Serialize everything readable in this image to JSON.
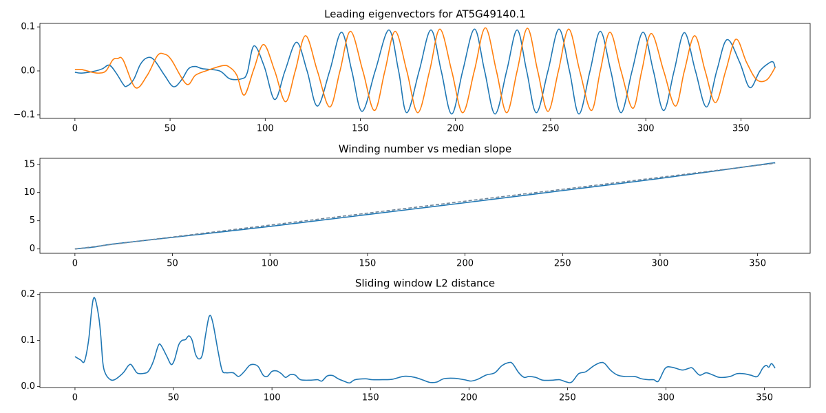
{
  "chart_data": [
    {
      "type": "line",
      "title": "Leading eigenvectors for AT5G49140.1",
      "xlim": [
        -18.4,
        386.4
      ],
      "xticks": [
        0,
        50,
        100,
        150,
        200,
        250,
        300,
        350
      ],
      "ylim": [
        -0.108,
        0.108
      ],
      "yticks": [
        {
          "value": -0.1,
          "label": "−0.1"
        },
        {
          "value": 0,
          "label": "0.0"
        },
        {
          "value": 0.1,
          "label": "0.1"
        }
      ],
      "series": [
        {
          "color": "#1f77b4",
          "x": [
            0,
            3.6,
            10.9,
            14.5,
            18.1,
            21.7,
            25.3,
            27.1,
            30.8,
            34.4,
            38.0,
            41.6,
            47.1,
            51.8,
            56.1,
            59.7,
            63.3,
            67.0,
            76.0,
            81.4,
            87.6,
            90.5,
            94.1,
            99.5,
            105.0,
            110.4,
            116.5,
            122.0,
            127.4,
            133.9,
            140.1,
            145.5,
            150.9,
            157.8,
            165.0,
            170.1,
            174.4,
            180.9,
            187.1,
            192.5,
            198.0,
            203.8,
            210.0,
            215.3,
            220.8,
            226.9,
            232.4,
            237.4,
            242.5,
            248.6,
            254.4,
            259.9,
            264.9,
            270.7,
            276.1,
            281.6,
            287.0,
            292.8,
            298.6,
            304.0,
            309.4,
            314.9,
            320.3,
            326.1,
            331.9,
            337.3,
            342.7,
            349.3,
            354.7,
            360.0,
            364.8,
            367.0,
            368.0
          ],
          "values": [
            -0.003,
            -0.005,
            0.0,
            0.005,
            0.013,
            -0.005,
            -0.03,
            -0.035,
            -0.02,
            0.015,
            0.03,
            0.025,
            -0.01,
            -0.036,
            -0.02,
            0.005,
            0.01,
            0.005,
            0.0,
            -0.018,
            -0.018,
            -0.005,
            0.057,
            0.01,
            -0.065,
            0.0,
            0.065,
            0.0,
            -0.08,
            0.0,
            0.088,
            0.0,
            -0.092,
            0.0,
            0.093,
            0.0,
            -0.095,
            0.0,
            0.093,
            0.0,
            -0.098,
            0.0,
            0.095,
            0.0,
            -0.098,
            0.0,
            0.093,
            0.0,
            -0.095,
            0.0,
            0.095,
            0.0,
            -0.098,
            0.0,
            0.09,
            0.0,
            -0.095,
            0.0,
            0.088,
            0.0,
            -0.09,
            0.0,
            0.087,
            0.0,
            -0.082,
            0.0,
            0.071,
            0.02,
            -0.038,
            0.0,
            0.018,
            0.02,
            0.007
          ]
        },
        {
          "color": "#ff7f0e",
          "x": [
            0,
            3.6,
            9.0,
            12.7,
            16.3,
            19.9,
            22.4,
            25.3,
            31.8,
            38.0,
            43.4,
            47.1,
            50.7,
            58.6,
            63.3,
            68.8,
            77.8,
            81.4,
            85.1,
            89.0,
            94.1,
            99.2,
            105.0,
            110.7,
            115.8,
            121.2,
            127.4,
            133.9,
            139.3,
            144.8,
            151.3,
            157.4,
            162.9,
            168.3,
            174.4,
            180.2,
            186.4,
            191.8,
            198.0,
            203.8,
            209.9,
            215.7,
            221.5,
            226.9,
            232.4,
            237.8,
            243.2,
            248.6,
            254.1,
            259.5,
            265.3,
            271.4,
            276.1,
            281.2,
            287.0,
            293.2,
            297.9,
            302.9,
            309.4,
            315.6,
            320.3,
            325.7,
            331.2,
            336.6,
            342.0,
            347.4,
            352.9,
            358.3,
            363.7,
            368.0
          ],
          "values": [
            0.003,
            0.003,
            -0.003,
            -0.005,
            0.0,
            0.025,
            0.028,
            0.025,
            -0.038,
            -0.01,
            0.035,
            0.038,
            0.025,
            -0.03,
            -0.01,
            0.0,
            0.012,
            0.008,
            -0.01,
            -0.055,
            0.005,
            0.06,
            0.0,
            -0.07,
            0.0,
            0.08,
            0.0,
            -0.082,
            0.0,
            0.09,
            0.0,
            -0.09,
            0.0,
            0.09,
            0.0,
            -0.095,
            0.0,
            0.095,
            0.0,
            -0.095,
            0.0,
            0.098,
            0.0,
            -0.095,
            0.0,
            0.097,
            0.0,
            -0.092,
            0.0,
            0.095,
            0.0,
            -0.09,
            0.0,
            0.088,
            0.0,
            -0.085,
            0.0,
            0.085,
            0.0,
            -0.08,
            0.0,
            0.08,
            0.0,
            -0.072,
            0.0,
            0.072,
            0.02,
            -0.02,
            -0.02,
            0.008
          ]
        }
      ]
    },
    {
      "type": "line",
      "title": "Winding number vs median slope",
      "xlim": [
        -17.95,
        376.95
      ],
      "xticks": [
        0,
        50,
        100,
        150,
        200,
        250,
        300,
        350
      ],
      "ylim": [
        -0.77,
        16.07
      ],
      "yticks": [
        0,
        5,
        10,
        15
      ],
      "series": [
        {
          "color": "#1f77b4",
          "x": [
            0,
            10,
            20,
            50,
            100,
            150,
            200,
            250,
            300,
            359
          ],
          "values": [
            0,
            0.35,
            0.9,
            2.05,
            4.0,
            6.1,
            8.2,
            10.35,
            12.5,
            15.3
          ]
        },
        {
          "color": "#6f8599",
          "linestyle": "dashed",
          "x": [
            0,
            10,
            20,
            50,
            100,
            150,
            200,
            250,
            300,
            359
          ],
          "values": [
            0,
            0.42,
            0.85,
            2.12,
            4.23,
            6.35,
            8.47,
            10.58,
            12.7,
            15.2
          ]
        }
      ]
    },
    {
      "type": "line",
      "title": "Sliding window L2 distance",
      "xlim": [
        -17.8,
        373.2
      ],
      "xticks": [
        0,
        50,
        100,
        150,
        200,
        250,
        300,
        350
      ],
      "ylim": [
        -0.002,
        0.204
      ],
      "yticks": [
        {
          "value": 0,
          "label": "0.0"
        },
        {
          "value": 0.1,
          "label": "0.1"
        },
        {
          "value": 0.2,
          "label": "0.2"
        }
      ],
      "series": [
        {
          "color": "#1f77b4",
          "x": [
            0,
            2.8,
            4.8,
            6.9,
            8.3,
            9.3,
            10.4,
            12.1,
            13.1,
            14.2,
            15.6,
            18.0,
            20.1,
            22.5,
            24.9,
            27.0,
            28.4,
            30.1,
            31.8,
            35.3,
            37.4,
            39.8,
            42.2,
            43.6,
            46.7,
            48.8,
            50.5,
            52.6,
            54.3,
            56.1,
            57.8,
            59.5,
            61.2,
            63.0,
            64.7,
            66.4,
            68.2,
            69.9,
            72.7,
            74.7,
            76.8,
            80.3,
            83.0,
            85.8,
            88.6,
            91.0,
            93.1,
            95.5,
            97.6,
            100.0,
            102.4,
            104.8,
            106.9,
            109.3,
            111.8,
            114.5,
            119.7,
            123.2,
            125.3,
            128.0,
            130.8,
            133.6,
            137.0,
            139.4,
            142.2,
            147.4,
            150.9,
            156.1,
            161.2,
            166.4,
            169.9,
            173.4,
            176.8,
            180.3,
            183.7,
            187.2,
            192.4,
            197.6,
            201.0,
            204.5,
            208.7,
            213.1,
            216.6,
            220.1,
            222.1,
            225.3,
            228.0,
            230.4,
            233.9,
            237.4,
            242.6,
            246.0,
            249.5,
            252.2,
            255.7,
            259.2,
            263.3,
            266.8,
            268.9,
            272.0,
            275.4,
            278.9,
            284.1,
            287.5,
            291.0,
            293.8,
            296.2,
            299.7,
            303.1,
            308.3,
            311.8,
            313.5,
            317.0,
            320.4,
            323.9,
            327.3,
            332.5,
            336.0,
            339.4,
            342.9,
            346.4,
            349.1,
            350.9,
            352.2,
            353.6,
            355.4
          ],
          "values": [
            0.065,
            0.058,
            0.055,
            0.1,
            0.16,
            0.19,
            0.188,
            0.15,
            0.11,
            0.05,
            0.027,
            0.015,
            0.015,
            0.022,
            0.032,
            0.045,
            0.048,
            0.038,
            0.029,
            0.029,
            0.034,
            0.055,
            0.088,
            0.09,
            0.065,
            0.048,
            0.058,
            0.09,
            0.1,
            0.102,
            0.11,
            0.1,
            0.07,
            0.06,
            0.07,
            0.115,
            0.153,
            0.14,
            0.075,
            0.035,
            0.03,
            0.03,
            0.022,
            0.032,
            0.046,
            0.048,
            0.043,
            0.025,
            0.022,
            0.033,
            0.034,
            0.028,
            0.02,
            0.026,
            0.025,
            0.015,
            0.014,
            0.015,
            0.012,
            0.023,
            0.024,
            0.017,
            0.011,
            0.008,
            0.015,
            0.017,
            0.015,
            0.015,
            0.016,
            0.022,
            0.022,
            0.019,
            0.014,
            0.009,
            0.01,
            0.017,
            0.018,
            0.015,
            0.012,
            0.016,
            0.025,
            0.03,
            0.045,
            0.052,
            0.05,
            0.03,
            0.02,
            0.022,
            0.02,
            0.014,
            0.014,
            0.015,
            0.01,
            0.01,
            0.028,
            0.032,
            0.045,
            0.052,
            0.05,
            0.035,
            0.025,
            0.022,
            0.022,
            0.017,
            0.015,
            0.015,
            0.012,
            0.04,
            0.042,
            0.036,
            0.04,
            0.04,
            0.025,
            0.03,
            0.025,
            0.02,
            0.022,
            0.028,
            0.028,
            0.025,
            0.022,
            0.04,
            0.046,
            0.042,
            0.05,
            0.04
          ]
        }
      ]
    }
  ]
}
